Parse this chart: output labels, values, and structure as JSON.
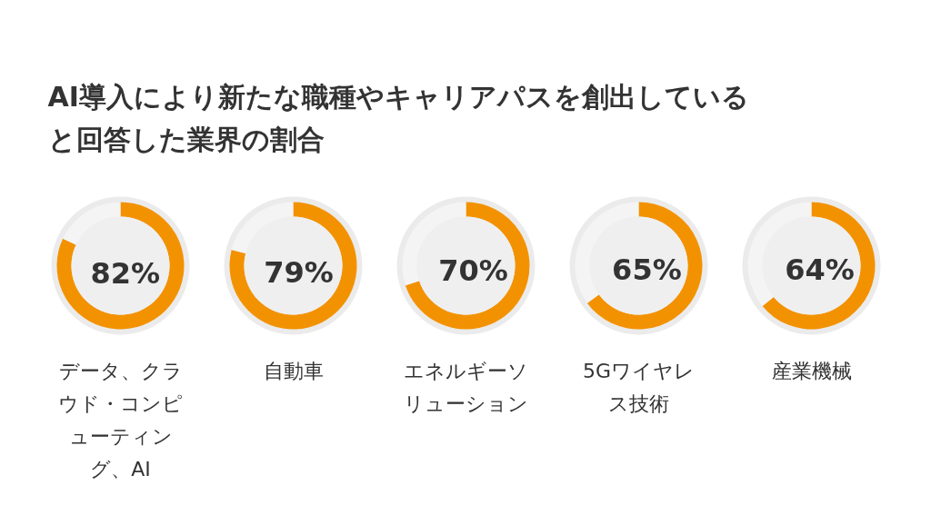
{
  "chart_data": [
    {
      "type": "donut",
      "title": "AI導入により新たな職種やキャリアパスを創出していると回答した業界の割合",
      "categories": [
        "データ、クラウド・コンピューティング、AI",
        null
      ],
      "values": [
        82,
        18
      ],
      "colors": [
        "#f39200",
        "#f4f4f4"
      ],
      "value_labels": [
        "82%",
        null
      ]
    },
    {
      "type": "donut",
      "categories": [
        "自動車",
        null
      ],
      "values": [
        79,
        21
      ],
      "colors": [
        "#f39200",
        "#f4f4f4"
      ],
      "value_labels": [
        "79%",
        null
      ]
    },
    {
      "type": "donut",
      "categories": [
        "エネルギーソリューション",
        null
      ],
      "values": [
        70,
        30
      ],
      "colors": [
        "#f39200",
        "#f4f4f4"
      ],
      "value_labels": [
        "70%",
        null
      ]
    },
    {
      "type": "donut",
      "categories": [
        "5Gワイヤレス技術",
        null
      ],
      "values": [
        65,
        35
      ],
      "colors": [
        "#f39200",
        "#f4f4f4"
      ],
      "value_labels": [
        "65%",
        null
      ]
    },
    {
      "type": "donut",
      "categories": [
        "産業機械",
        null
      ],
      "values": [
        64,
        36
      ],
      "colors": [
        "#f39200",
        "#f4f4f4"
      ],
      "value_labels": [
        "64%",
        null
      ]
    }
  ]
}
